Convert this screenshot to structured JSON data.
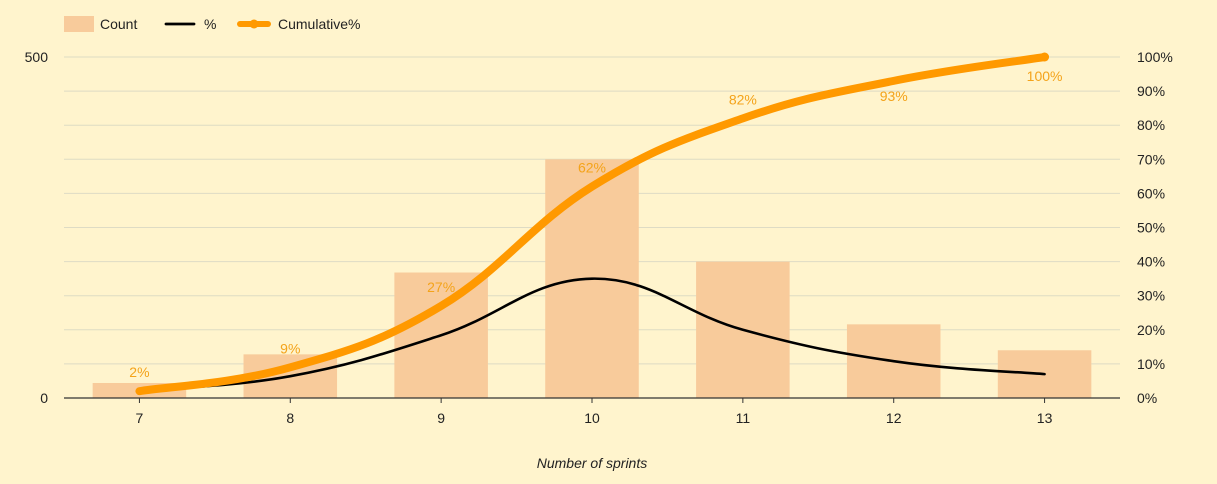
{
  "chart_data": {
    "type": "bar",
    "categories": [
      "7",
      "8",
      "9",
      "10",
      "11",
      "12",
      "13"
    ],
    "series": [
      {
        "name": "Count",
        "type": "bar",
        "axis": "left",
        "values": [
          22,
          64,
          184,
          350,
          200,
          108,
          70
        ]
      },
      {
        "name": "%",
        "type": "line",
        "axis": "right",
        "values": [
          2.2,
          6.4,
          18.4,
          35.0,
          20.0,
          10.8,
          7.0
        ]
      },
      {
        "name": "Cumulative%",
        "type": "line",
        "axis": "right",
        "values": [
          2,
          9,
          27,
          62,
          82,
          93,
          100
        ],
        "labels": [
          "2%",
          "9%",
          "27%",
          "62%",
          "82%",
          "93%",
          "100%"
        ]
      }
    ],
    "xlabel": "Number of sprints",
    "ylabel": "",
    "ylim": [
      0,
      500
    ],
    "y_ticks": [
      "0",
      "500"
    ],
    "y2lim": [
      0,
      100
    ],
    "y2_ticks": [
      "0%",
      "10%",
      "20%",
      "30%",
      "40%",
      "50%",
      "60%",
      "70%",
      "80%",
      "90%",
      "100%"
    ],
    "grid": true,
    "legend_position": "top-left",
    "colors": {
      "background": "#fff4cd",
      "bar": "#f8cb9b",
      "percent_line": "#000000",
      "cumulative_line": "#ff9900",
      "cumulative_label": "#f4a31a",
      "grid": "#dedbc4",
      "axis": "#333333",
      "text": "#222222"
    }
  }
}
